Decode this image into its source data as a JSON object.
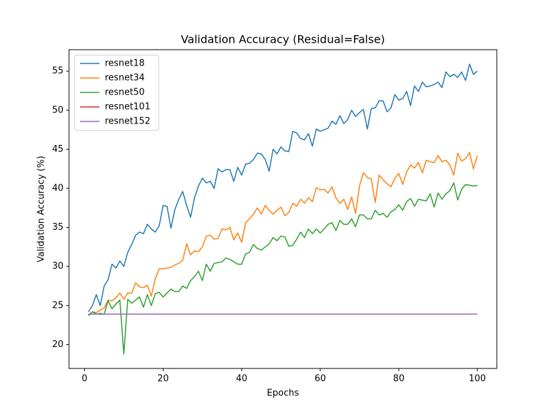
{
  "chart_data": {
    "type": "line",
    "title": "Validation Accuracy (Residual=False)",
    "x_label": "Epochs",
    "y_label": "Validation Accuracy (%)",
    "x": [
      1,
      2,
      3,
      4,
      5,
      6,
      7,
      8,
      9,
      10,
      11,
      12,
      13,
      14,
      15,
      16,
      17,
      18,
      19,
      20,
      21,
      22,
      23,
      24,
      25,
      26,
      27,
      28,
      29,
      30,
      31,
      32,
      33,
      34,
      35,
      36,
      37,
      38,
      39,
      40,
      41,
      42,
      43,
      44,
      45,
      46,
      47,
      48,
      49,
      50,
      51,
      52,
      53,
      54,
      55,
      56,
      57,
      58,
      59,
      60,
      61,
      62,
      63,
      64,
      65,
      66,
      67,
      68,
      69,
      70,
      71,
      72,
      73,
      74,
      75,
      76,
      77,
      78,
      79,
      80,
      81,
      82,
      83,
      84,
      85,
      86,
      87,
      88,
      89,
      90,
      91,
      92,
      93,
      94,
      95,
      96,
      97,
      98,
      99,
      100
    ],
    "series": [
      {
        "name": "resnet18",
        "color": "#1f77b4",
        "values": [
          24.2,
          25.0,
          26.4,
          25.0,
          27.5,
          28.3,
          30.3,
          29.8,
          30.7,
          30.0,
          31.8,
          32.8,
          34.0,
          34.4,
          34.2,
          35.4,
          34.8,
          34.4,
          35.2,
          37.8,
          37.7,
          34.9,
          37.3,
          38.6,
          39.6,
          37.8,
          36.3,
          38.8,
          40.3,
          41.3,
          40.7,
          40.9,
          40.0,
          42.5,
          42.1,
          42.4,
          42.4,
          40.9,
          42.7,
          41.7,
          43.1,
          43.2,
          43.7,
          44.5,
          44.4,
          43.7,
          42.2,
          45.0,
          44.4,
          45.3,
          44.8,
          44.7,
          47.3,
          47.1,
          46.4,
          46.2,
          47.0,
          45.4,
          47.6,
          47.3,
          47.5,
          47.7,
          48.6,
          48.2,
          49.3,
          48.3,
          48.8,
          50.0,
          49.2,
          49.7,
          50.1,
          47.6,
          50.2,
          50.3,
          51.2,
          51.2,
          49.8,
          50.3,
          52.0,
          51.3,
          51.5,
          52.4,
          50.6,
          53.1,
          52.4,
          53.6,
          53.0,
          53.1,
          53.3,
          53.6,
          52.9,
          54.9,
          54.3,
          54.6,
          54.2,
          54.9,
          53.8,
          55.9,
          54.6,
          55.0
        ]
      },
      {
        "name": "resnet34",
        "color": "#ff7f0e",
        "values": [
          23.8,
          24.2,
          24.1,
          24.4,
          24.7,
          25.7,
          25.6,
          26.0,
          26.6,
          25.8,
          26.6,
          26.6,
          27.9,
          27.4,
          27.3,
          27.6,
          26.2,
          28.4,
          29.7,
          29.7,
          29.8,
          29.9,
          30.2,
          30.4,
          30.8,
          32.9,
          31.5,
          32.0,
          31.9,
          32.5,
          33.9,
          34.0,
          33.5,
          33.6,
          34.8,
          34.7,
          35.0,
          33.4,
          34.3,
          33.1,
          35.6,
          36.1,
          36.7,
          37.5,
          36.7,
          37.8,
          37.2,
          36.7,
          37.2,
          37.6,
          36.5,
          36.9,
          38.1,
          37.7,
          38.6,
          38.1,
          38.8,
          38.3,
          40.1,
          39.8,
          39.9,
          39.4,
          40.2,
          38.8,
          38.1,
          38.6,
          37.3,
          38.9,
          36.8,
          40.3,
          42.0,
          41.4,
          41.2,
          38.2,
          41.7,
          41.1,
          40.6,
          40.2,
          41.3,
          41.9,
          40.5,
          42.1,
          43.0,
          42.6,
          43.3,
          42.0,
          43.6,
          43.4,
          43.3,
          44.2,
          43.4,
          43.6,
          43.0,
          41.7,
          44.5,
          43.5,
          43.8,
          44.6,
          42.5,
          44.2
        ]
      },
      {
        "name": "resnet50",
        "color": "#2ca02c",
        "values": [
          23.7,
          24.2,
          23.9,
          24.0,
          23.9,
          25.6,
          24.6,
          25.2,
          25.7,
          18.8,
          25.8,
          25.3,
          25.7,
          26.1,
          24.8,
          26.4,
          25.0,
          26.5,
          26.7,
          26.1,
          26.6,
          27.1,
          26.8,
          26.8,
          27.5,
          27.2,
          28.2,
          28.7,
          29.4,
          28.2,
          30.3,
          29.4,
          30.4,
          30.5,
          30.6,
          31.1,
          30.9,
          30.6,
          30.3,
          30.3,
          31.6,
          31.8,
          32.8,
          32.3,
          32.1,
          32.5,
          32.9,
          33.7,
          33.3,
          33.9,
          33.8,
          32.6,
          32.7,
          33.5,
          34.4,
          33.7,
          34.8,
          34.2,
          34.8,
          34.3,
          34.8,
          35.4,
          35.6,
          34.6,
          35.9,
          35.4,
          35.4,
          36.1,
          35.1,
          36.6,
          36.6,
          36.1,
          36.1,
          37.2,
          36.6,
          36.8,
          36.3,
          37.0,
          37.3,
          37.9,
          37.2,
          38.3,
          38.7,
          37.7,
          38.6,
          38.5,
          38.4,
          39.3,
          37.6,
          39.4,
          38.6,
          39.3,
          39.7,
          40.7,
          38.5,
          39.9,
          40.5,
          40.4,
          40.3,
          40.4
        ]
      },
      {
        "name": "resnet101",
        "color": "#d62728",
        "values": [
          23.9,
          23.9,
          23.9,
          23.9,
          23.9,
          23.9,
          23.9,
          23.9,
          23.9,
          23.9,
          23.9,
          23.9,
          23.9,
          23.9,
          23.9,
          23.9,
          23.9,
          23.9,
          23.9,
          23.9,
          23.9,
          23.9,
          23.9,
          23.9,
          23.9,
          23.9,
          23.9,
          23.9,
          23.9,
          23.9,
          23.9,
          23.9,
          23.9,
          23.9,
          23.9,
          23.9,
          23.9,
          23.9,
          23.9,
          23.9,
          23.9,
          23.9,
          23.9,
          23.9,
          23.9,
          23.9,
          23.9,
          23.9,
          23.9,
          23.9,
          23.9,
          23.9,
          23.9,
          23.9,
          23.9,
          23.9,
          23.9,
          23.9,
          23.9,
          23.9,
          23.9,
          23.9,
          23.9,
          23.9,
          23.9,
          23.9,
          23.9,
          23.9,
          23.9,
          23.9,
          23.9,
          23.9,
          23.9,
          23.9,
          23.9,
          23.9,
          23.9,
          23.9,
          23.9,
          23.9,
          23.9,
          23.9,
          23.9,
          23.9,
          23.9,
          23.9,
          23.9,
          23.9,
          23.9,
          23.9,
          23.9,
          23.9,
          23.9,
          23.9,
          23.9,
          23.9,
          23.9,
          23.9,
          23.9,
          23.9
        ]
      },
      {
        "name": "resnet152",
        "color": "#9467bd",
        "values": [
          23.9,
          23.9,
          23.9,
          23.9,
          23.9,
          23.9,
          23.9,
          23.9,
          23.9,
          23.9,
          23.9,
          23.9,
          23.9,
          23.9,
          23.9,
          23.9,
          23.9,
          23.9,
          23.9,
          23.9,
          23.9,
          23.9,
          23.9,
          23.9,
          23.9,
          23.9,
          23.9,
          23.9,
          23.9,
          23.9,
          23.9,
          23.9,
          23.9,
          23.9,
          23.9,
          23.9,
          23.9,
          23.9,
          23.9,
          23.9,
          23.9,
          23.9,
          23.9,
          23.9,
          23.9,
          23.9,
          23.9,
          23.9,
          23.9,
          23.9,
          23.9,
          23.9,
          23.9,
          23.9,
          23.9,
          23.9,
          23.9,
          23.9,
          23.9,
          23.9,
          23.9,
          23.9,
          23.9,
          23.9,
          23.9,
          23.9,
          23.9,
          23.9,
          23.9,
          23.9,
          23.9,
          23.9,
          23.9,
          23.9,
          23.9,
          23.9,
          23.9,
          23.9,
          23.9,
          23.9,
          23.9,
          23.9,
          23.9,
          23.9,
          23.9,
          23.9,
          23.9,
          23.9,
          23.9,
          23.9,
          23.9,
          23.9,
          23.9,
          23.9,
          23.9,
          23.9,
          23.9,
          23.9,
          23.9,
          23.9
        ]
      }
    ],
    "xlim": [
      -3.95,
      104.95
    ],
    "xticks": [
      0,
      20,
      40,
      60,
      80,
      100
    ],
    "ylim": [
      16.95,
      57.75
    ],
    "yticks": [
      20,
      25,
      30,
      35,
      40,
      45,
      50,
      55
    ],
    "grid": false,
    "legend": "upper left"
  }
}
